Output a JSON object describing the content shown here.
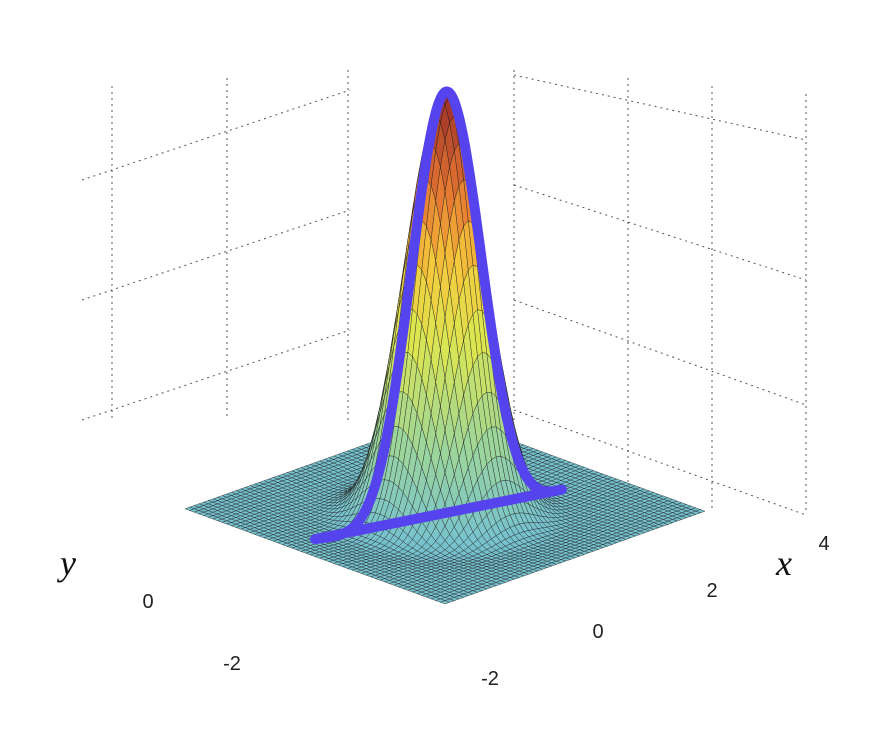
{
  "chart_data": {
    "type": "surface",
    "title": "",
    "xlabel": "x",
    "ylabel": "y",
    "zlabel": "",
    "x_ticks": [
      "-2",
      "0",
      "2",
      "4"
    ],
    "y_ticks": [
      "-2",
      "0"
    ],
    "x_range": [
      -4,
      4
    ],
    "y_range": [
      -4,
      4
    ],
    "surface": {
      "function": "exp(-(x^2+y^2)/2) * (1 - 0.5*(x^2+y^2)/3)",
      "colormap": "jet",
      "mesh_lines": "black",
      "grid": true
    },
    "highlight_path": {
      "color": "#5544ee",
      "vertices": [
        {
          "x": -3.2,
          "y": 0.8
        },
        {
          "x": -0.2,
          "y": 0.0
        },
        {
          "x": 2.8,
          "y": -0.8
        }
      ]
    }
  }
}
